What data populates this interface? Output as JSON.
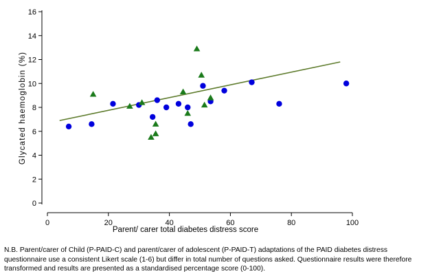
{
  "chart_data": {
    "type": "scatter",
    "xlabel": "Parent/ carer total diabetes distress score",
    "ylabel": "Glycated haemoglobin (%)",
    "xlim": [
      0,
      100
    ],
    "ylim": [
      0,
      16
    ],
    "xticks": [
      0,
      20,
      40,
      60,
      80,
      100
    ],
    "yticks": [
      0,
      2,
      4,
      6,
      8,
      10,
      12,
      14,
      16
    ],
    "grid": false,
    "legend": "none",
    "series": [
      {
        "marker": "circle",
        "color": "#0000dd",
        "points": [
          {
            "x": 7,
            "y": 6.4
          },
          {
            "x": 14.5,
            "y": 6.6
          },
          {
            "x": 21.5,
            "y": 8.3
          },
          {
            "x": 30,
            "y": 8.2
          },
          {
            "x": 34.5,
            "y": 7.2
          },
          {
            "x": 36,
            "y": 8.6
          },
          {
            "x": 39,
            "y": 8.0
          },
          {
            "x": 43,
            "y": 8.3
          },
          {
            "x": 46,
            "y": 8.0
          },
          {
            "x": 47,
            "y": 6.6
          },
          {
            "x": 51,
            "y": 9.8
          },
          {
            "x": 53.5,
            "y": 8.5
          },
          {
            "x": 58,
            "y": 9.4
          },
          {
            "x": 67,
            "y": 10.1
          },
          {
            "x": 76,
            "y": 8.3
          },
          {
            "x": 98,
            "y": 10.0
          }
        ]
      },
      {
        "marker": "triangle",
        "color": "#1a7a1a",
        "points": [
          {
            "x": 15,
            "y": 9.1
          },
          {
            "x": 27,
            "y": 8.1
          },
          {
            "x": 31,
            "y": 8.4
          },
          {
            "x": 34,
            "y": 5.5
          },
          {
            "x": 35.5,
            "y": 5.8
          },
          {
            "x": 35.5,
            "y": 6.6
          },
          {
            "x": 44.5,
            "y": 9.3
          },
          {
            "x": 46,
            "y": 7.5
          },
          {
            "x": 49,
            "y": 12.9
          },
          {
            "x": 50.5,
            "y": 10.7
          },
          {
            "x": 51.5,
            "y": 8.2
          },
          {
            "x": 53.5,
            "y": 8.8
          }
        ]
      }
    ],
    "fit_line": {
      "color": "#5c7a2a",
      "x": [
        4,
        96
      ],
      "y": [
        6.9,
        11.8
      ]
    }
  },
  "note": "N.B. Parent/carer of Child (P-PAID-C) and parent/carer of adolescent (P-PAID-T) adaptations of the PAID diabetes distress questionnaire use a consistent Likert scale (1-6) but differ in total number of questions asked. Questionnaire results were therefore transformed and results are presented as a standardised percentage score (0-100)."
}
